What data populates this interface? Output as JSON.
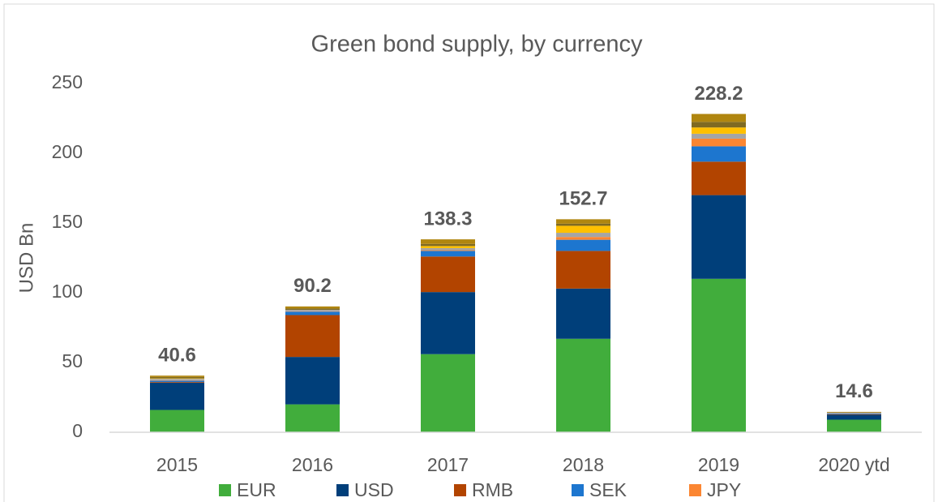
{
  "chart_data": {
    "type": "stacked_bar",
    "title": "Green bond supply, by currency",
    "ylabel": "USD Bn",
    "categories": [
      "2015",
      "2016",
      "2017",
      "2018",
      "2019",
      "2020 ytd"
    ],
    "series": [
      {
        "name": "EUR",
        "color": "#41ad3c",
        "values": [
          16,
          20,
          56,
          67,
          110,
          9
        ]
      },
      {
        "name": "USD",
        "color": "#003f7a",
        "values": [
          19.5,
          34,
          44.5,
          36,
          60,
          3.5
        ]
      },
      {
        "name": "RMB",
        "color": "#b24400",
        "values": [
          0.5,
          30,
          25.5,
          27,
          24,
          0.3
        ]
      },
      {
        "name": "SEK",
        "color": "#1d76cf",
        "values": [
          1,
          2.5,
          4,
          8,
          11,
          0.5
        ]
      },
      {
        "name": "JPY",
        "color": "#fb8632",
        "values": [
          0.3,
          0.3,
          0.5,
          2,
          5.5,
          0.2
        ]
      },
      {
        "color": "#a5a5a5",
        "values": [
          1,
          1,
          1.5,
          3,
          3.5,
          0.5
        ]
      },
      {
        "color": "#ffc000",
        "values": [
          0.3,
          0,
          1.5,
          5,
          4.5,
          0
        ]
      },
      {
        "color": "#7f6a22",
        "values": [
          1,
          0.9,
          1.5,
          1.5,
          4,
          0.3
        ]
      },
      {
        "color": "#b0860f",
        "values": [
          1,
          1.5,
          3.3,
          3.2,
          5.7,
          0.3
        ]
      }
    ],
    "totals": [
      40.6,
      90.2,
      138.3,
      152.7,
      228.2,
      14.6
    ],
    "ylim": [
      0,
      250
    ],
    "yticks": [
      0,
      50,
      100,
      150,
      200,
      250
    ],
    "grid": false
  }
}
